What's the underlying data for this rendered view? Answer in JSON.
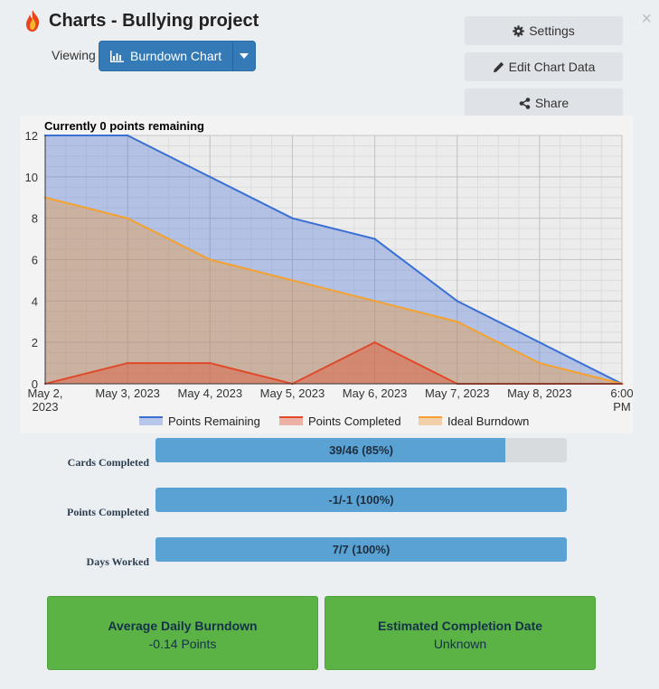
{
  "header": {
    "title": "Charts - Bullying project",
    "close_symbol": "×"
  },
  "viewing": {
    "label": "Viewing",
    "selected": "Burndown Chart"
  },
  "buttons": {
    "settings": "Settings",
    "edit": "Edit Chart Data",
    "share": "Share"
  },
  "colors": {
    "remaining": "#3a6fd4",
    "completed": "#e04a2b",
    "ideal": "#f5a12f",
    "progress": "#5aa2d3",
    "stat": "#5cb345"
  },
  "chart_data": {
    "type": "area",
    "title": "Currently 0 points remaining",
    "x": [
      "May 2, 2023",
      "May 3, 2023",
      "May 4, 2023",
      "May 5, 2023",
      "May 6, 2023",
      "May 7, 2023",
      "May 8, 2023",
      "6:00 PM"
    ],
    "series": [
      {
        "name": "Points Remaining",
        "values": [
          12,
          12,
          10,
          8,
          7,
          4,
          2,
          0
        ]
      },
      {
        "name": "Points Completed",
        "values": [
          0,
          1,
          1,
          0,
          2,
          0,
          0,
          0
        ]
      },
      {
        "name": "Ideal Burndown",
        "values": [
          9,
          8,
          6,
          5,
          4,
          3,
          1,
          0
        ]
      }
    ],
    "ylim": [
      0,
      12
    ],
    "yticks": [
      "0",
      "2",
      "4",
      "6",
      "8",
      "10",
      "12"
    ],
    "grid": true,
    "legend": "bottom"
  },
  "progress": [
    {
      "label": "Cards Completed",
      "text": "39/46 (85%)",
      "fraction": 0.85
    },
    {
      "label": "Points Completed",
      "text": "-1/-1 (100%)",
      "fraction": 1.0
    },
    {
      "label": "Days Worked",
      "text": "7/7 (100%)",
      "fraction": 1.0
    }
  ],
  "stats": [
    {
      "title": "Average Daily Burndown",
      "value": "-0.14 Points"
    },
    {
      "title": "Estimated Completion Date",
      "value": "Unknown"
    }
  ]
}
